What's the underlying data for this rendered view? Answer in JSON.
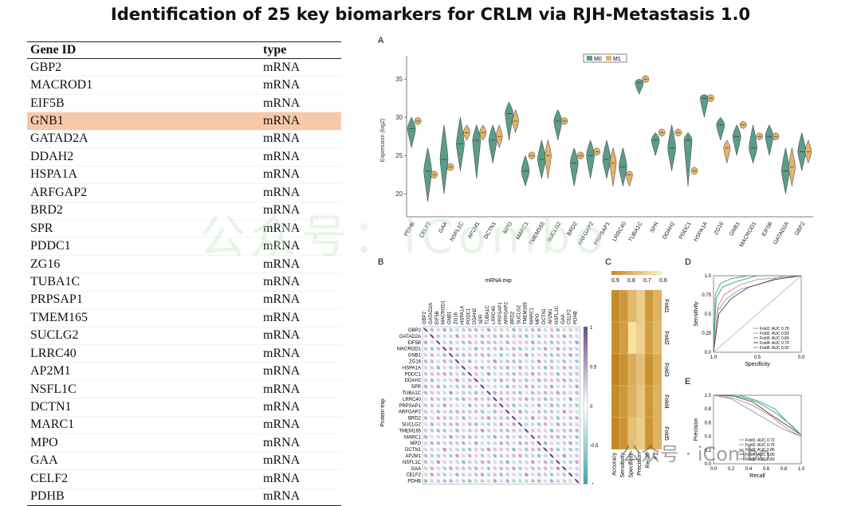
{
  "title": "Identification of 25 key biomarkers for CRLM via RJH-Metastasis 1.0",
  "table": {
    "headers": [
      "Gene ID",
      "type"
    ],
    "highlight_index": 3,
    "rows": [
      [
        "GBP2",
        "mRNA"
      ],
      [
        "MACROD1",
        "mRNA"
      ],
      [
        "EIF5B",
        "mRNA"
      ],
      [
        "GNB1",
        "mRNA"
      ],
      [
        "GATAD2A",
        "mRNA"
      ],
      [
        "DDAH2",
        "mRNA"
      ],
      [
        "HSPA1A",
        "mRNA"
      ],
      [
        "ARFGAP2",
        "mRNA"
      ],
      [
        "BRD2",
        "mRNA"
      ],
      [
        "SPR",
        "mRNA"
      ],
      [
        "PDDC1",
        "mRNA"
      ],
      [
        "ZG16",
        "mRNA"
      ],
      [
        "TUBA1C",
        "mRNA"
      ],
      [
        "PRPSAP1",
        "mRNA"
      ],
      [
        "TMEM165",
        "mRNA"
      ],
      [
        "SUCLG2",
        "mRNA"
      ],
      [
        "LRRC40",
        "mRNA"
      ],
      [
        "AP2M1",
        "mRNA"
      ],
      [
        "NSFL1C",
        "mRNA"
      ],
      [
        "DCTN1",
        "mRNA"
      ],
      [
        "MARC1",
        "mRNA"
      ],
      [
        "MPO",
        "mRNA"
      ],
      [
        "GAA",
        "mRNA"
      ],
      [
        "CELF2",
        "mRNA"
      ],
      [
        "PDHB",
        "mRNA"
      ]
    ]
  },
  "watermark": "公众号：iCombo",
  "watermark2": "公众号 · iCombo",
  "colors": {
    "m0": "#5b9c8c",
    "m1": "#e3b46c",
    "highlight": "#f7c9a9"
  },
  "chart_data": [
    {
      "panel": "A",
      "type": "violin",
      "ylabel": "Expression (log2)",
      "ylim": [
        17,
        37
      ],
      "yticks": [
        20,
        25,
        30,
        35
      ],
      "legend": [
        "M0",
        "M1"
      ],
      "categories": [
        "PDHB",
        "CELF2",
        "GAA",
        "NSFL1C",
        "AP2M1",
        "DCTN1",
        "MPO",
        "MARC1",
        "TMEM165",
        "SUCLG2",
        "BRD2",
        "ARFGAP2",
        "PRPSAP1",
        "LRRC40",
        "TUBA1C",
        "SPR",
        "DDAH2",
        "PDDC1",
        "HSPA1A",
        "ZG16",
        "GNB1",
        "MACROD1",
        "EIF5B",
        "GATAD2A",
        "GBP2"
      ],
      "series": [
        {
          "name": "M0",
          "median": [
            28.5,
            23.0,
            24.5,
            26.5,
            27.0,
            27.0,
            30.5,
            23.0,
            24.5,
            29.5,
            24.0,
            25.0,
            24.5,
            23.5,
            34.5,
            27.0,
            26.0,
            27.0,
            32.5,
            29.0,
            27.5,
            26.0,
            27.5,
            23.0,
            25.5
          ],
          "min": [
            26,
            19,
            20,
            23,
            22,
            24,
            27,
            21,
            22,
            27,
            21,
            22,
            22,
            21,
            33,
            25,
            23,
            21,
            30,
            27,
            25,
            24,
            25,
            20,
            23
          ],
          "max": [
            30,
            26,
            29,
            30,
            29,
            29,
            32,
            25,
            27,
            31,
            26,
            27,
            27,
            26,
            35,
            28,
            29,
            28,
            33,
            30,
            29,
            29,
            29,
            26,
            28
          ]
        },
        {
          "name": "M1",
          "median": [
            29.5,
            22.5,
            23.5,
            28.0,
            28.0,
            27.5,
            29.5,
            25.0,
            25.0,
            29.5,
            25.0,
            25.5,
            24.0,
            22.5,
            35.0,
            28.0,
            28.0,
            23.0,
            32.5,
            26.0,
            29.0,
            27.5,
            27.5,
            23.5,
            25.5
          ],
          "min": [
            29,
            22,
            23,
            27,
            27,
            26,
            28,
            24.5,
            22,
            29,
            24.5,
            25,
            21,
            21,
            34.5,
            27.5,
            27.5,
            22.5,
            32,
            24,
            28.5,
            27,
            27,
            21,
            24
          ],
          "max": [
            30,
            23,
            24,
            29,
            29,
            29,
            31,
            25.5,
            27,
            30,
            25.5,
            26,
            26,
            23,
            35.5,
            28.5,
            28.5,
            23.5,
            33,
            27,
            29.5,
            28,
            28,
            26,
            27
          ]
        }
      ]
    },
    {
      "panel": "B",
      "type": "heatmap",
      "title": "mRNA exp",
      "ylabel": "Protein exp",
      "x_labels": [
        "GBP2",
        "GATAD2A",
        "EIF5B",
        "MACROD1",
        "GNB1",
        "ZG16",
        "HSPA1A",
        "PDDC1",
        "DDAH2",
        "SPR",
        "TUBA1C",
        "LRRC40",
        "PRPSAP1",
        "ARFGAP2",
        "BRD2",
        "SUCLG2",
        "TMEM165",
        "MARC1",
        "MPO",
        "DCTN1",
        "AP2M1",
        "NSFL1C",
        "GAA",
        "CELF2",
        "PDHB"
      ],
      "y_labels": [
        "GBP2",
        "GATAD2A",
        "EIF5B",
        "MACROD1",
        "GNB1",
        "ZG16",
        "HSPA1A",
        "PDDC1",
        "DDAH2",
        "SPR",
        "TUBA1C",
        "LRRC40",
        "PRPSAP1",
        "ARFGAP2",
        "BRD2",
        "SUCLG2",
        "TMEM165",
        "MARC1",
        "MPO",
        "DCTN1",
        "AP2M1",
        "NSFL1C",
        "GAA",
        "CELF2",
        "PDHB"
      ],
      "colorbar_ticks": [
        "1",
        "0.5",
        "0",
        "-0.5",
        "-1"
      ]
    },
    {
      "panel": "C",
      "type": "heatmap",
      "colorbar_ticks": [
        "0.9",
        "0.8",
        "0.7",
        "0.6"
      ],
      "x_labels": [
        "Accuracy",
        "Sensitivity",
        "Specificity",
        "Precision",
        "Recall",
        "F1"
      ],
      "y_labels": [
        "Fold1",
        "Fold2",
        "Fold3",
        "Fold4",
        "Fold5"
      ],
      "values": [
        [
          0.86,
          0.82,
          0.72,
          0.66,
          0.82,
          0.74
        ],
        [
          0.85,
          0.8,
          0.6,
          0.65,
          0.8,
          0.72
        ],
        [
          0.88,
          0.84,
          0.76,
          0.7,
          0.84,
          0.76
        ],
        [
          0.86,
          0.82,
          0.74,
          0.68,
          0.82,
          0.74
        ],
        [
          0.87,
          0.83,
          0.7,
          0.66,
          0.83,
          0.74
        ]
      ]
    },
    {
      "panel": "D",
      "type": "line",
      "xlabel": "Specificity",
      "ylabel": "Sensitivity",
      "x_ticks": [
        "1.0",
        "0.5",
        "0.0"
      ],
      "y_ticks": [
        "0.0",
        "0.25",
        "0.5",
        "0.75",
        "1.0"
      ],
      "legend": [
        "Fold1: AUC 0.78",
        "Fold2: AUC 0.83",
        "Fold3: AUC 0.89",
        "Fold4: AUC 0.79",
        "Fold5: AUC 0.92"
      ]
    },
    {
      "panel": "E",
      "type": "line",
      "xlabel": "Recall",
      "ylabel": "Precision",
      "x_ticks": [
        "0.0",
        "0.2",
        "0.4",
        "0.6",
        "0.8",
        "1.0"
      ],
      "y_ticks": [
        "0.0",
        "0.2",
        "0.4",
        "0.6",
        "0.8",
        "1.0"
      ],
      "legend": [
        "Fold1: AUC 0.72",
        "Fold2: AUC 0.75",
        "Fold3: AUC 0.85",
        "Fold4: AUC 0.80",
        "Fold5: AUC 0.83"
      ]
    }
  ],
  "fold_colors": [
    "#7b9bd1",
    "#d77a8f",
    "#2f9e8c",
    "#444444",
    "#4aa564"
  ]
}
